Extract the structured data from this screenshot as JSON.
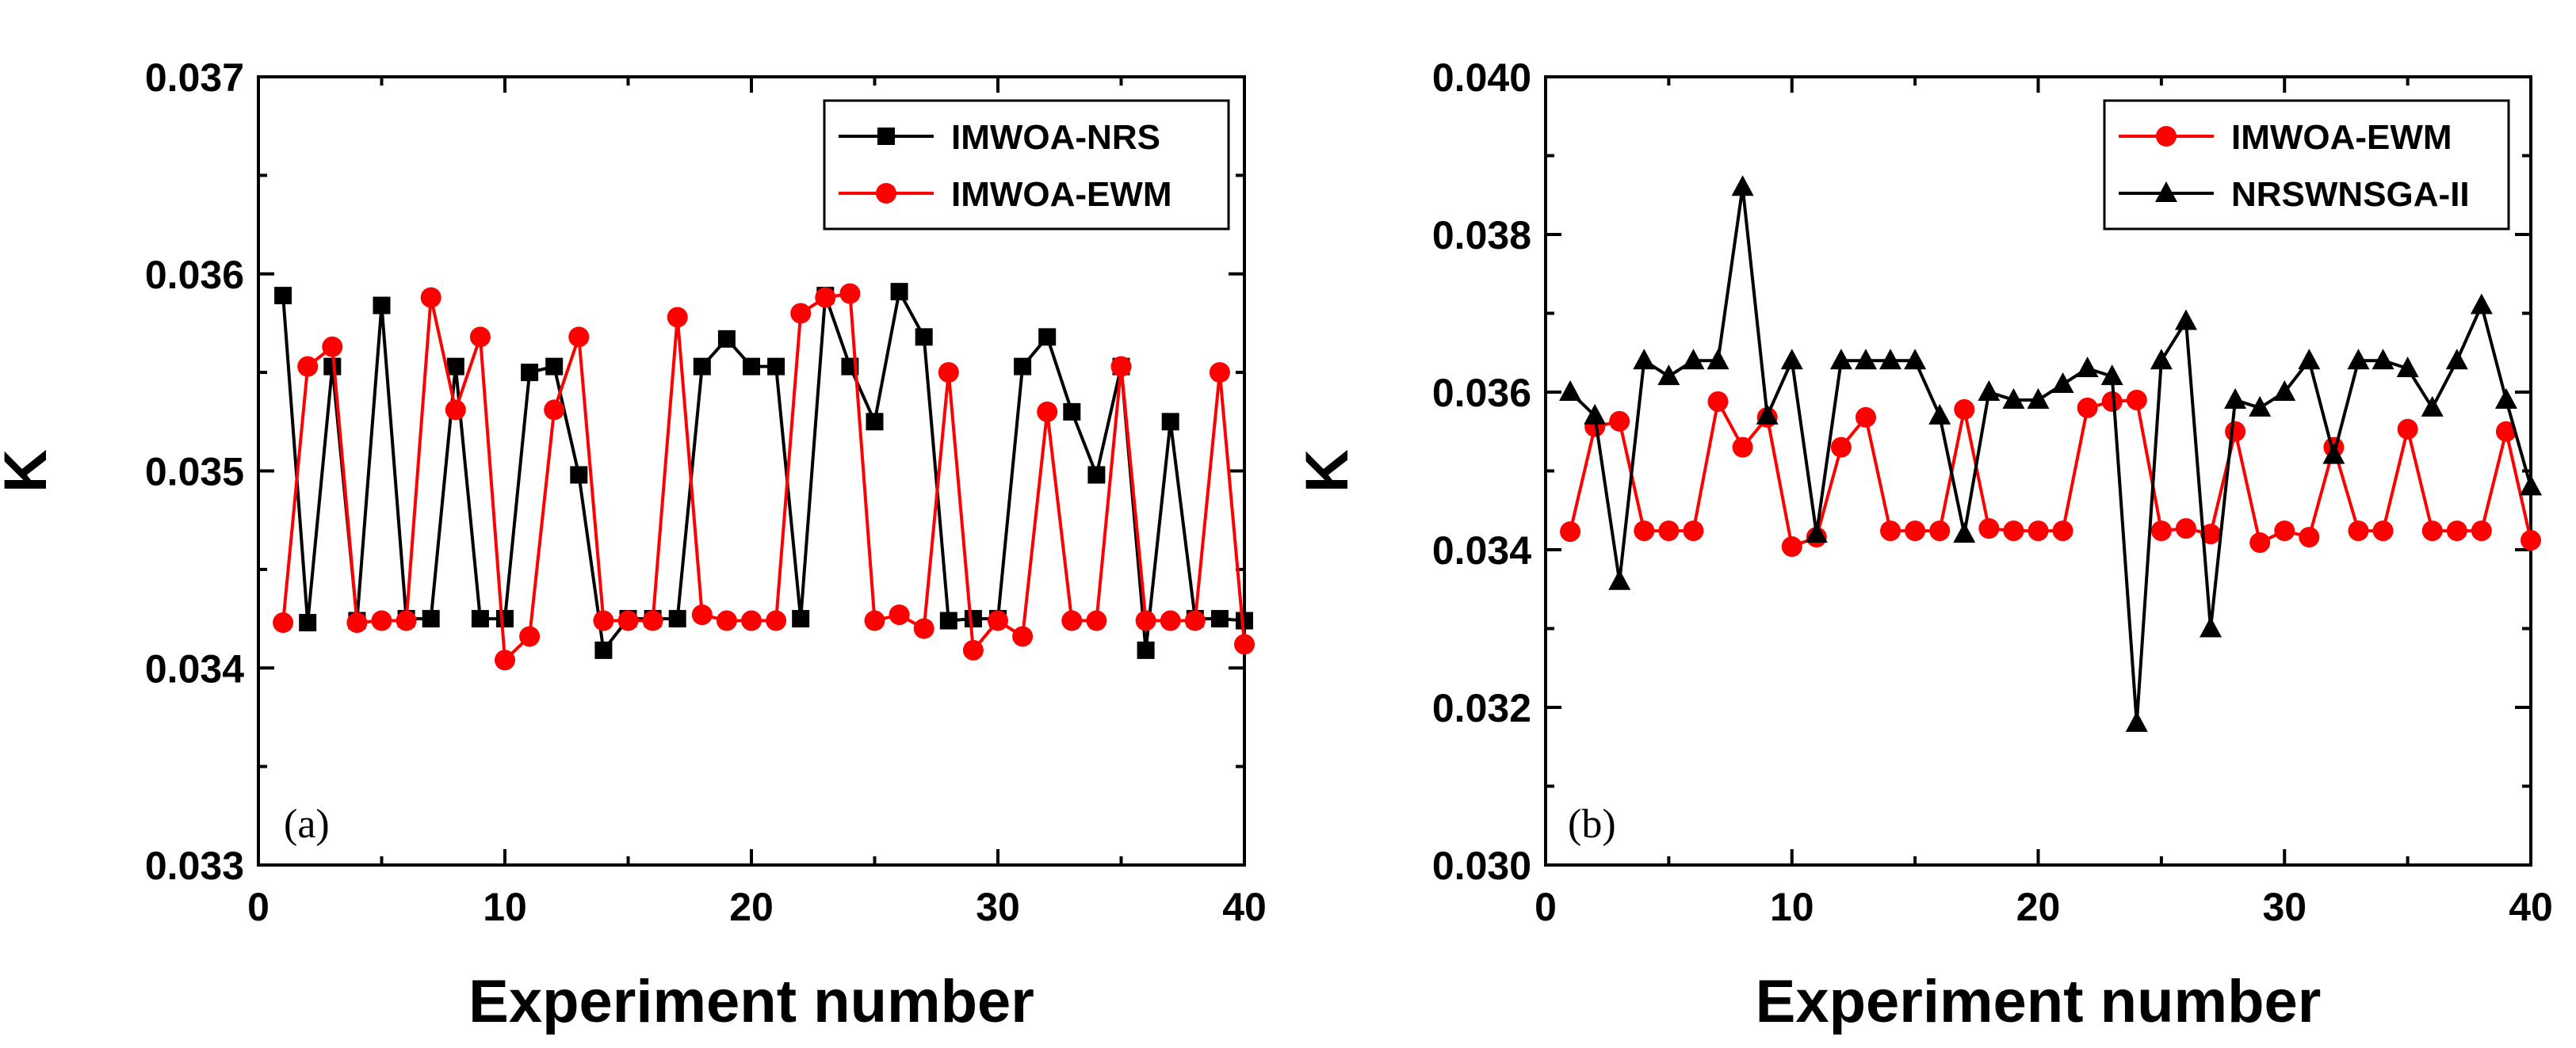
{
  "chart_data": [
    {
      "type": "line",
      "panel_label": "(a)",
      "xlabel": "Experiment number",
      "ylabel": "K",
      "xlim": [
        0,
        40
      ],
      "ylim": [
        0.033,
        0.037
      ],
      "xticks": [
        0,
        10,
        20,
        30,
        40
      ],
      "xtick_labels": [
        "0",
        "10",
        "20",
        "30",
        "40"
      ],
      "yticks": [
        0.033,
        0.034,
        0.035,
        0.036,
        0.037
      ],
      "ytick_labels": [
        "0.033",
        "0.034",
        "0.035",
        "0.036",
        "0.037"
      ],
      "legend_position": "top-right",
      "x": [
        1,
        2,
        3,
        4,
        5,
        6,
        7,
        8,
        9,
        10,
        11,
        12,
        13,
        14,
        15,
        16,
        17,
        18,
        19,
        20,
        21,
        22,
        23,
        24,
        25,
        26,
        27,
        28,
        29,
        30,
        31,
        32,
        33,
        34,
        35,
        36,
        37,
        38,
        39,
        40
      ],
      "series": [
        {
          "name": "IMWOA-NRS",
          "color": "#000000",
          "marker": "square",
          "values": [
            0.03589,
            0.03423,
            0.03553,
            0.03424,
            0.03584,
            0.03425,
            0.03425,
            0.03553,
            0.03425,
            0.03425,
            0.0355,
            0.03553,
            0.03498,
            0.03409,
            0.03425,
            0.03425,
            0.03425,
            0.03553,
            0.03567,
            0.03553,
            0.03553,
            0.03425,
            0.03589,
            0.03553,
            0.03525,
            0.03591,
            0.03568,
            0.03424,
            0.03425,
            0.03425,
            0.03553,
            0.03568,
            0.0353,
            0.03498,
            0.03553,
            0.03409,
            0.03525,
            0.03425,
            0.03425,
            0.03424
          ]
        },
        {
          "name": "IMWOA-EWM",
          "color": "#ff0000",
          "marker": "circle",
          "values": [
            0.03423,
            0.03553,
            0.03563,
            0.03423,
            0.03424,
            0.03424,
            0.03588,
            0.03531,
            0.03568,
            0.03404,
            0.03416,
            0.03531,
            0.03568,
            0.03424,
            0.03424,
            0.03424,
            0.03578,
            0.03427,
            0.03424,
            0.03424,
            0.03424,
            0.0358,
            0.03588,
            0.0359,
            0.03424,
            0.03427,
            0.0342,
            0.0355,
            0.03409,
            0.03424,
            0.03416,
            0.0353,
            0.03424,
            0.03424,
            0.03553,
            0.03424,
            0.03424,
            0.03424,
            0.0355,
            0.03412
          ]
        }
      ]
    },
    {
      "type": "line",
      "panel_label": "(b)",
      "xlabel": "Experiment number",
      "ylabel": "K",
      "xlim": [
        0,
        40
      ],
      "ylim": [
        0.03,
        0.04
      ],
      "xticks": [
        0,
        10,
        20,
        30,
        40
      ],
      "xtick_labels": [
        "0",
        "10",
        "20",
        "30",
        "40"
      ],
      "yticks": [
        0.03,
        0.032,
        0.034,
        0.036,
        0.038,
        0.04
      ],
      "ytick_labels": [
        "0.030",
        "0.032",
        "0.034",
        "0.036",
        "0.038",
        "0.040"
      ],
      "legend_position": "top-right",
      "x": [
        1,
        2,
        3,
        4,
        5,
        6,
        7,
        8,
        9,
        10,
        11,
        12,
        13,
        14,
        15,
        16,
        17,
        18,
        19,
        20,
        21,
        22,
        23,
        24,
        25,
        26,
        27,
        28,
        29,
        30,
        31,
        32,
        33,
        34,
        35,
        36,
        37,
        38,
        39,
        40
      ],
      "series": [
        {
          "name": "IMWOA-EWM",
          "color": "#ff0000",
          "marker": "circle",
          "values": [
            0.03423,
            0.03556,
            0.03563,
            0.03424,
            0.03424,
            0.03424,
            0.03588,
            0.0353,
            0.03568,
            0.03404,
            0.03416,
            0.0353,
            0.03568,
            0.03424,
            0.03424,
            0.03424,
            0.03578,
            0.03427,
            0.03424,
            0.03424,
            0.03424,
            0.0358,
            0.03588,
            0.0359,
            0.03424,
            0.03427,
            0.0342,
            0.0355,
            0.03409,
            0.03424,
            0.03416,
            0.0353,
            0.03424,
            0.03424,
            0.03553,
            0.03424,
            0.03424,
            0.03424,
            0.0355,
            0.03412
          ]
        },
        {
          "name": "NRSWNSGA-II",
          "color": "#000000",
          "marker": "triangle",
          "values": [
            0.036,
            0.0357,
            0.0336,
            0.0364,
            0.0362,
            0.0364,
            0.0364,
            0.0386,
            0.0357,
            0.0364,
            0.0342,
            0.0364,
            0.0364,
            0.0364,
            0.0364,
            0.0357,
            0.0342,
            0.036,
            0.0359,
            0.0359,
            0.0361,
            0.0363,
            0.0362,
            0.0318,
            0.0364,
            0.0369,
            0.033,
            0.0359,
            0.0358,
            0.036,
            0.0364,
            0.0352,
            0.0364,
            0.0364,
            0.0363,
            0.0358,
            0.0364,
            0.0371,
            0.0359,
            0.0348
          ]
        }
      ]
    }
  ]
}
